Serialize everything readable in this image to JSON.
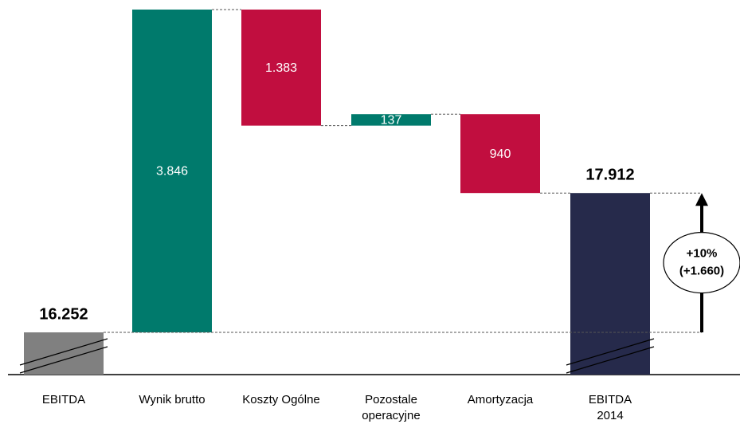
{
  "chart_data": {
    "type": "waterfall",
    "categories": [
      "EBITDA",
      "Wynik brutto",
      "Koszty Ogólne",
      "Pozostale\noperacyjne",
      "Amortyzacja",
      "EBITDA\n2014"
    ],
    "values": [
      16252,
      3846,
      -1383,
      137,
      -940,
      17912
    ],
    "value_labels": [
      "16.252",
      "3.846",
      "1.383",
      "137",
      "940",
      "17.912"
    ],
    "totals": [
      true,
      false,
      false,
      false,
      false,
      true
    ],
    "colors": [
      "#808080",
      "#007a6c",
      "#c10e3f",
      "#007a6c",
      "#c10e3f",
      "#262a4b"
    ],
    "annotation": [
      "+10%",
      "(+1.660)"
    ]
  }
}
